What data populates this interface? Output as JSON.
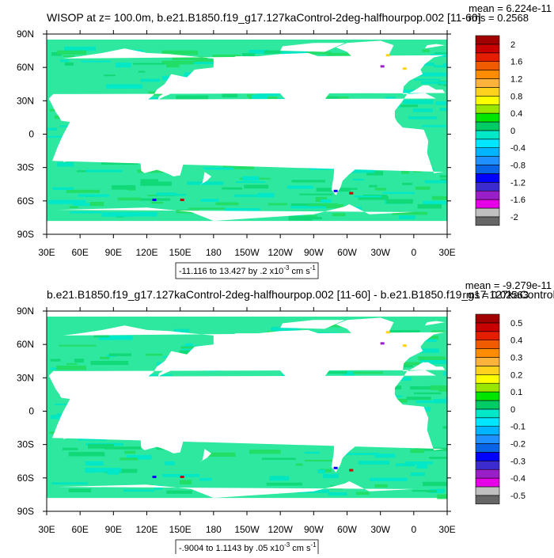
{
  "chart_data": [
    {
      "type": "heatmap",
      "title": "WISOP at z= 100.0m, b.e21.B1850.f19_g17.127kaControl-2deg-halfhourpop.002 [11-60]",
      "mean_text": "mean = 6.224e-11",
      "rms_text": "rms = 0.2568",
      "range_text": "-11.116 to 13.427 by .2 x10",
      "range_exp": "-3",
      "range_unit": " cm s",
      "range_unit_exp": "-1",
      "x_ticks": [
        "30E",
        "60E",
        "90E",
        "120E",
        "150E",
        "180",
        "150W",
        "120W",
        "90W",
        "60W",
        "30W",
        "0",
        "30E"
      ],
      "y_ticks": [
        "90N",
        "60N",
        "30N",
        "0",
        "30S",
        "60S",
        "90S"
      ],
      "xlim": [
        30,
        390
      ],
      "ylim": [
        -90,
        90
      ],
      "colorbar_labels": [
        "2",
        "1.6",
        "1.2",
        "0.8",
        "0.4",
        "0",
        "-0.4",
        "-0.8",
        "-1.2",
        "-1.6",
        "-2"
      ],
      "levels": [
        -2.0,
        -1.8,
        -1.6,
        -1.4,
        -1.2,
        -1.0,
        -0.8,
        -0.6,
        -0.4,
        -0.2,
        0,
        0.2,
        0.4,
        0.6,
        0.8,
        1.0,
        1.2,
        1.4,
        1.6,
        1.8,
        2.0
      ]
    },
    {
      "type": "heatmap",
      "title": "b.e21.B1850.f19_g17.127kaControl-2deg-halfhourpop.002 [11-60] - b.e21.B1850.f19_g17.127kaControl-",
      "mean_text": "mean = -9.279e-11",
      "rms_text": "rms = 0.02563",
      "range_text": "-.9004 to 1.1143 by .05 x10",
      "range_exp": "-3",
      "range_unit": " cm s",
      "range_unit_exp": "-1",
      "x_ticks": [
        "30E",
        "60E",
        "90E",
        "120E",
        "150E",
        "180",
        "150W",
        "120W",
        "90W",
        "60W",
        "30W",
        "0",
        "30E"
      ],
      "y_ticks": [
        "90N",
        "60N",
        "30N",
        "0",
        "30S",
        "60S",
        "90S"
      ],
      "xlim": [
        30,
        390
      ],
      "ylim": [
        -90,
        90
      ],
      "colorbar_labels": [
        "0.5",
        "0.4",
        "0.3",
        "0.2",
        "0.1",
        "0",
        "-0.1",
        "-0.2",
        "-0.3",
        "-0.4",
        "-0.5"
      ],
      "levels": [
        -0.5,
        -0.45,
        -0.4,
        -0.35,
        -0.3,
        -0.25,
        -0.2,
        -0.15,
        -0.1,
        -0.05,
        0,
        0.05,
        0.1,
        0.15,
        0.2,
        0.25,
        0.3,
        0.35,
        0.4,
        0.45,
        0.5
      ]
    }
  ],
  "colors": {
    "palette": [
      "#666666",
      "#c0c0c0",
      "#e600e6",
      "#9b1fc9",
      "#3c2ccf",
      "#0000ff",
      "#0a64e6",
      "#1e90ff",
      "#00b4ff",
      "#00e6ff",
      "#00e8c8",
      "#00cc66",
      "#00e600",
      "#98e600",
      "#ffff00",
      "#ffd21e",
      "#ffb23c",
      "#ff8c00",
      "#f05a00",
      "#e61e00",
      "#c80000",
      "#a00000"
    ],
    "land": "#ffffff",
    "ocean_fill": "#2ee8a0",
    "frame": "#000000"
  }
}
